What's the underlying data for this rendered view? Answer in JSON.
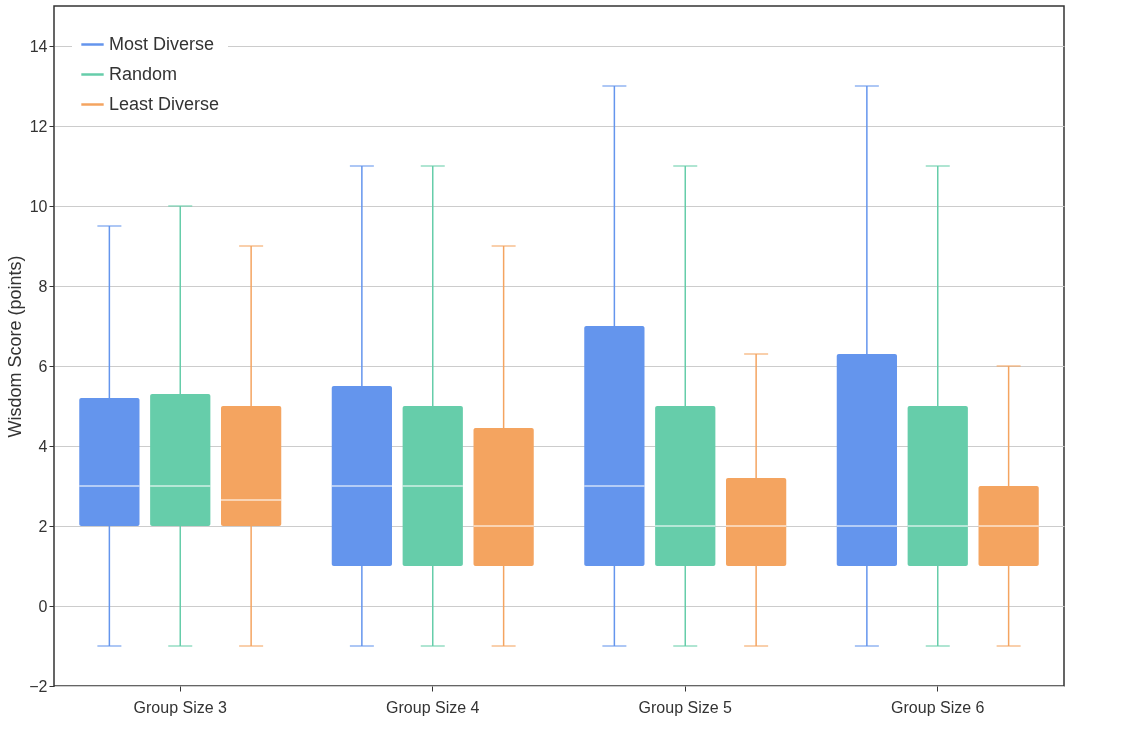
{
  "chart_data": {
    "type": "box",
    "ylabel": "Wisdom Score (points)",
    "categories": [
      "Group Size 3",
      "Group Size 4",
      "Group Size 5",
      "Group Size 6"
    ],
    "series": [
      {
        "name": "Most Diverse",
        "color": "#6495ed",
        "boxes": [
          {
            "low": -1,
            "q1": 2,
            "median": 3,
            "q3": 5.2,
            "high": 9.5
          },
          {
            "low": -1,
            "q1": 1,
            "median": 3,
            "q3": 5.5,
            "high": 11
          },
          {
            "low": -1,
            "q1": 1,
            "median": 3,
            "q3": 7,
            "high": 13
          },
          {
            "low": -1,
            "q1": 1,
            "median": 2,
            "q3": 6.3,
            "high": 13
          }
        ]
      },
      {
        "name": "Random",
        "color": "#66cdaa",
        "boxes": [
          {
            "low": -1,
            "q1": 2,
            "median": 3,
            "q3": 5.3,
            "high": 10
          },
          {
            "low": -1,
            "q1": 1,
            "median": 3,
            "q3": 5,
            "high": 11
          },
          {
            "low": -1,
            "q1": 1,
            "median": 2,
            "q3": 5,
            "high": 11
          },
          {
            "low": -1,
            "q1": 1,
            "median": 2,
            "q3": 5,
            "high": 11
          }
        ]
      },
      {
        "name": "Least Diverse",
        "color": "#f4a460",
        "boxes": [
          {
            "low": -1,
            "q1": 2,
            "median": 2.65,
            "q3": 5,
            "high": 9
          },
          {
            "low": -1,
            "q1": 1,
            "median": 2,
            "q3": 4.45,
            "high": 9
          },
          {
            "low": -1,
            "q1": 1,
            "median": 2,
            "q3": 3.2,
            "high": 6.3
          },
          {
            "low": -1,
            "q1": 1,
            "median": 2,
            "q3": 3,
            "high": 6
          }
        ]
      }
    ],
    "ylim": [
      -2,
      15
    ],
    "yticks": [
      -2,
      0,
      2,
      4,
      6,
      8,
      10,
      12,
      14
    ],
    "grid": "y",
    "legend": "top left"
  }
}
